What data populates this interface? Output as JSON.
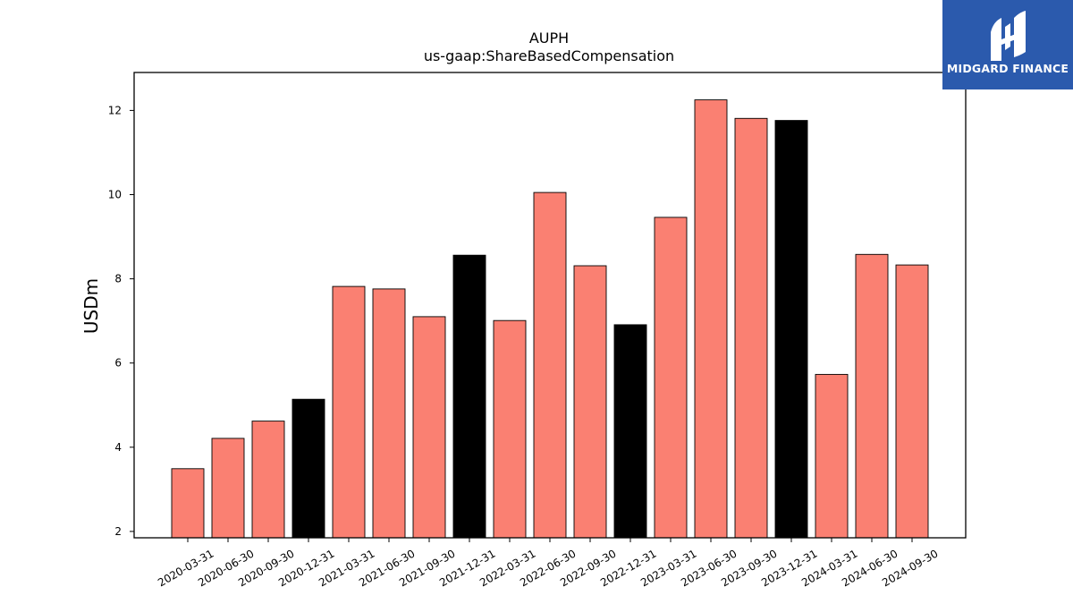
{
  "brand": {
    "name": "MIDGARD FINANCE",
    "logo_bg": "#2b5aad",
    "logo_fg": "#ffffff",
    "logo_icon": "midgard-monogram-icon"
  },
  "colors": {
    "regular_bar": "#fa8072",
    "annual_bar": "#000000",
    "bar_edge": "#000000",
    "axis": "#000000",
    "background": "#ffffff"
  },
  "chart_data": {
    "type": "bar",
    "title": "AUPH",
    "subtitle": "us-gaap:ShareBasedCompensation",
    "xlabel": "",
    "ylabel": "USDm",
    "ylim": [
      1.85,
      12.9
    ],
    "yticks": [
      2,
      4,
      6,
      8,
      10,
      12
    ],
    "grid": false,
    "legend": "none",
    "categories": [
      "2020-03-31",
      "2020-06-30",
      "2020-09-30",
      "2020-12-31",
      "2021-03-31",
      "2021-06-30",
      "2021-09-30",
      "2021-12-31",
      "2022-03-31",
      "2022-06-30",
      "2022-09-30",
      "2022-12-31",
      "2023-03-31",
      "2023-06-30",
      "2023-09-30",
      "2023-12-31",
      "2024-03-31",
      "2024-06-30",
      "2024-09-30"
    ],
    "values": [
      3.49,
      4.21,
      4.62,
      5.14,
      7.82,
      7.76,
      7.1,
      8.56,
      7.01,
      10.05,
      8.31,
      6.91,
      9.46,
      12.25,
      11.81,
      11.76,
      5.73,
      8.58,
      8.33
    ],
    "annual_flags": [
      false,
      false,
      false,
      true,
      false,
      false,
      false,
      true,
      false,
      false,
      false,
      true,
      false,
      false,
      false,
      true,
      false,
      false,
      false
    ]
  }
}
